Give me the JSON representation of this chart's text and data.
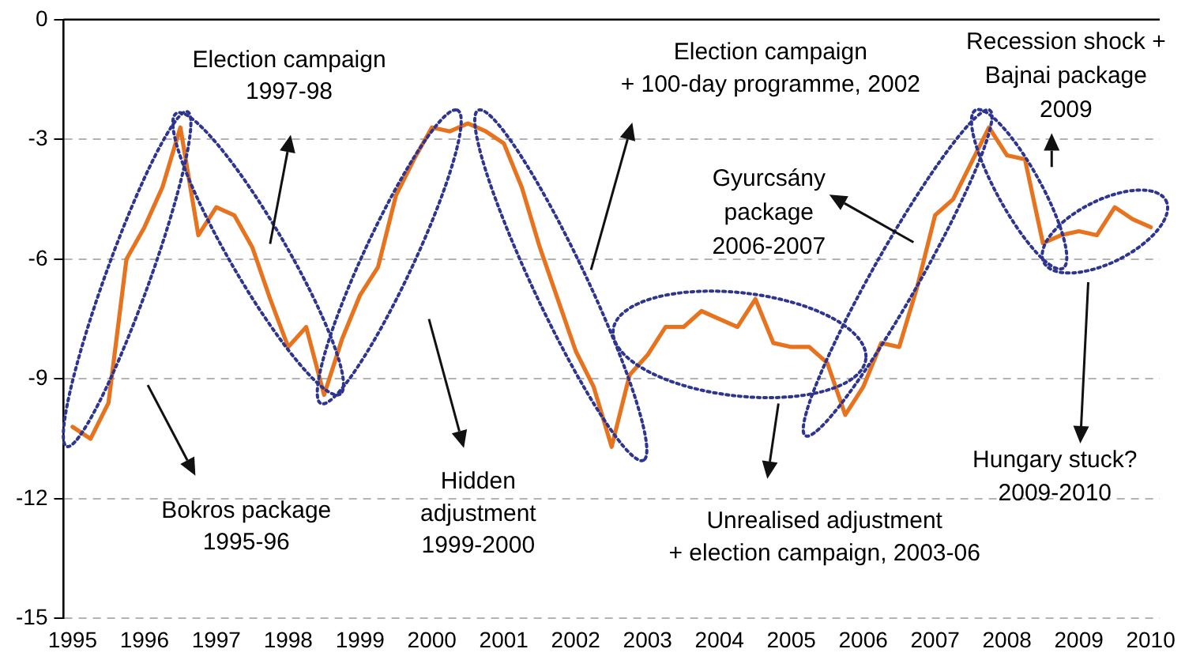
{
  "chart_data": {
    "type": "line",
    "categories": [
      "1995",
      null,
      null,
      null,
      "1996",
      null,
      null,
      null,
      "1997",
      null,
      null,
      null,
      "1998",
      null,
      null,
      null,
      "1999",
      null,
      null,
      null,
      "2000",
      null,
      null,
      null,
      "2001",
      null,
      null,
      null,
      "2002",
      null,
      null,
      null,
      "2003",
      null,
      null,
      null,
      "2004",
      null,
      null,
      null,
      "2005",
      null,
      null,
      null,
      "2006",
      null,
      null,
      null,
      "2007",
      null,
      null,
      null,
      "2008",
      null,
      null,
      null,
      "2009",
      null,
      null,
      null,
      "2010"
    ],
    "values": [
      -10.2,
      -10.5,
      -9.6,
      -6.0,
      -5.2,
      -4.2,
      -2.7,
      -5.4,
      -4.7,
      -4.9,
      -5.7,
      -7.0,
      -8.2,
      -7.7,
      -9.4,
      -8.0,
      -6.9,
      -6.2,
      -4.4,
      -3.5,
      -2.7,
      -2.8,
      -2.6,
      -2.8,
      -3.1,
      -4.2,
      -5.7,
      -7.0,
      -8.3,
      -9.2,
      -10.7,
      -8.9,
      -8.4,
      -7.7,
      -7.7,
      -7.3,
      -7.5,
      -7.7,
      -7.0,
      -8.1,
      -8.2,
      -8.2,
      -8.6,
      -9.9,
      -9.2,
      -8.1,
      -8.2,
      -6.7,
      -4.9,
      -4.5,
      -3.6,
      -2.7,
      -3.4,
      -3.5,
      -5.6,
      -5.4,
      -5.3,
      -5.4,
      -4.7,
      -5.0,
      -5.2
    ],
    "color": "#e8731e",
    "ylim": [
      -15,
      0
    ],
    "yticks": [
      0,
      -3,
      -6,
      -9,
      -12,
      -15
    ],
    "grid": "y",
    "legend": false,
    "marker": "none",
    "annotations": [
      "Election campaign\n1997-98",
      "Election campaign\n+ 100-day programme, 2002",
      "Recession shock +\nBajnai package\n2009",
      "Gyurcsány\npackage\n2006-2007",
      "Hungary stuck?\n2009-2010",
      "Bokros package\n1995-96",
      "Hidden\nadjustment\n1999-2000",
      "Unrealised adjustment\n+ election campaign, 2003-06"
    ]
  }
}
